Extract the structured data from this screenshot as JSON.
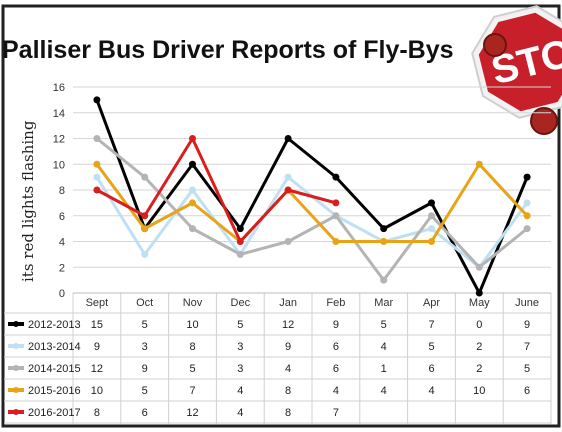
{
  "chart_data": {
    "type": "line",
    "title": "Palliser Bus Driver Reports of Fly-Bys",
    "ylabel": "its red lights flashing",
    "ylim": [
      0,
      16
    ],
    "yticks": [
      "0",
      "2",
      "4",
      "6",
      "8",
      "10",
      "12",
      "14",
      "16"
    ],
    "grid": true,
    "legend_placement": "table-below",
    "categories": [
      "Sept",
      "Oct",
      "Nov",
      "Dec",
      "Jan",
      "Feb",
      "Mar",
      "Apr",
      "May",
      "June"
    ],
    "series": [
      {
        "name": "2012-2013",
        "color": "#000000",
        "values": [
          15,
          5,
          10,
          5,
          12,
          9,
          5,
          7,
          0,
          9
        ]
      },
      {
        "name": "2013-2014",
        "color": "#bfe0f2",
        "values": [
          9,
          3,
          8,
          3,
          9,
          6,
          4,
          5,
          2,
          7
        ]
      },
      {
        "name": "2014-2015",
        "color": "#b4b4b4",
        "values": [
          12,
          9,
          5,
          3,
          4,
          6,
          1,
          6,
          2,
          5
        ]
      },
      {
        "name": "2015-2016",
        "color": "#e8a317",
        "values": [
          10,
          5,
          7,
          4,
          8,
          4,
          4,
          4,
          10,
          6
        ]
      },
      {
        "name": "2016-2017",
        "color": "#d81e1e",
        "values": [
          8,
          6,
          12,
          4,
          8,
          7,
          null,
          null,
          null,
          null
        ]
      }
    ]
  },
  "stop_sign": {
    "text": "STOP",
    "color": "#c8202a",
    "icon": "stop-sign-icon"
  }
}
